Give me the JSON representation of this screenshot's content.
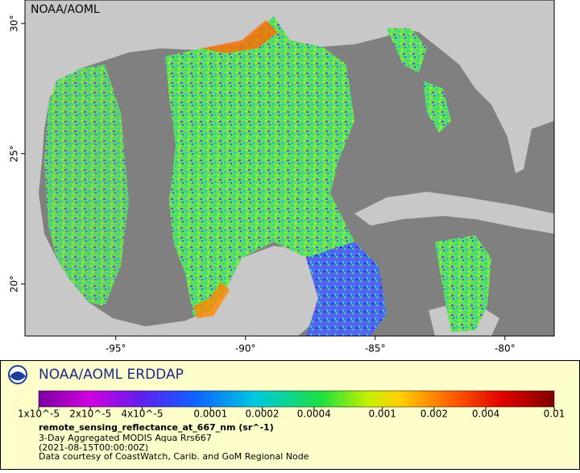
{
  "map": {
    "watermark": "NOAA/AOML",
    "xlim": [
      -98.5,
      -78.1
    ],
    "ylim": [
      18,
      30.9
    ],
    "xticks": [
      {
        "value": -95,
        "label": "-95°"
      },
      {
        "value": -90,
        "label": "-90°"
      },
      {
        "value": -85,
        "label": "-85°"
      },
      {
        "value": -80,
        "label": "-80°"
      }
    ],
    "yticks": [
      {
        "value": 20,
        "label": "20°"
      },
      {
        "value": 25,
        "label": "25°"
      },
      {
        "value": 30,
        "label": "30°"
      }
    ]
  },
  "legend": {
    "title": "NOAA/AOML ERDDAP",
    "colorbar": {
      "log": true,
      "lim": [
        1e-05,
        0.01
      ],
      "ticks": [
        {
          "value": 1e-05,
          "label": "1x10^-5"
        },
        {
          "value": 2e-05,
          "label": "2x10^-5"
        },
        {
          "value": 4e-05,
          "label": "4x10^-5"
        },
        0.0001,
        0.0002,
        0.0004,
        0.001,
        0.002,
        0.004,
        0.01
      ]
    },
    "variable": "remote_sensing_reflectance_at_667_nm (sr^-1)",
    "lines": [
      "3-Day Aggregated MODIS Aqua Rrs667",
      "(2021-08-15T00:00:00Z)",
      "Data courtesy of CoastWatch, Carib. and GoM Regional Node"
    ]
  }
}
